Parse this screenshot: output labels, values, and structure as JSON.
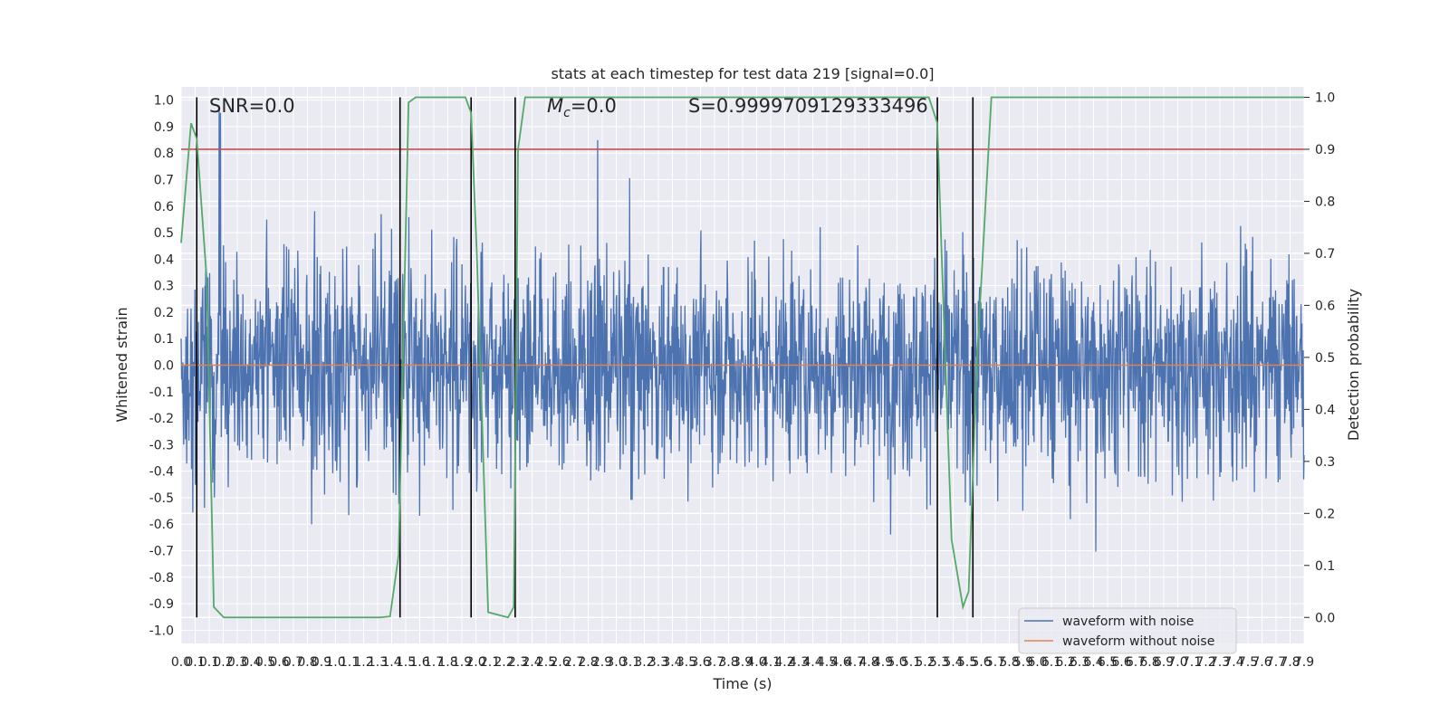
{
  "chart_data": {
    "type": "line",
    "title": "stats at each timestep for test data 219 [signal=0.0]",
    "xlabel": "Time (s)",
    "ylabel": "Whitened strain",
    "y2label": "Detection probability",
    "xlim": [
      0.0,
      7.9
    ],
    "ylim": [
      -1.05,
      1.05
    ],
    "y2lim": [
      -0.05,
      1.02
    ],
    "x_tick_labels": [
      "0.0",
      "0.1",
      "0.1",
      "0.2",
      "0.3",
      "0.4",
      "0.5",
      "0.6",
      "0.7",
      "0.8",
      "0.9",
      "1.0",
      "1.1",
      "1.2",
      "1.3",
      "1.4",
      "1.5",
      "1.6",
      "1.7",
      "1.8",
      "1.9",
      "2.0",
      "2.1",
      "2.2",
      "2.3",
      "2.4",
      "2.5",
      "2.6",
      "2.7",
      "2.8",
      "2.9",
      "3.0",
      "3.1",
      "3.2",
      "3.3",
      "3.4",
      "3.5",
      "3.6",
      "3.7",
      "3.8",
      "3.9",
      "4.0",
      "4.1",
      "4.2",
      "4.3",
      "4.4",
      "4.5",
      "4.6",
      "4.7",
      "4.8",
      "4.9",
      "5.0",
      "5.1",
      "5.2",
      "5.3",
      "5.4",
      "5.5",
      "5.6",
      "5.7",
      "5.8",
      "5.9",
      "6.0",
      "6.1",
      "6.2",
      "6.3",
      "6.4",
      "6.5",
      "6.6",
      "6.7",
      "6.8",
      "6.9",
      "7.0",
      "7.1",
      "7.2",
      "7.3",
      "7.4",
      "7.5",
      "7.6",
      "7.7",
      "7.8",
      "7.9"
    ],
    "y_ticks": [
      -1.0,
      -0.9,
      -0.8,
      -0.7,
      -0.6,
      -0.5,
      -0.4,
      -0.3,
      -0.2,
      -0.1,
      0.0,
      0.1,
      0.2,
      0.3,
      0.4,
      0.5,
      0.6,
      0.7,
      0.8,
      0.9,
      1.0
    ],
    "y2_ticks": [
      0.0,
      0.1,
      0.2,
      0.3,
      0.4,
      0.5,
      0.6,
      0.7,
      0.8,
      0.9,
      1.0
    ],
    "threshold": 0.9,
    "event_times": [
      0.11,
      1.54,
      2.04,
      2.35,
      5.32,
      5.57
    ],
    "series": [
      {
        "name": "waveform with noise",
        "color": "#4c72b0",
        "note": "noise, amplitude roughly +/-0.5 with spikes to +/-1.0"
      },
      {
        "name": "waveform without noise",
        "color": "#dd8452",
        "values_constant": 0.0
      },
      {
        "name": "detection probability",
        "color": "#55a868",
        "axis": "right",
        "x": [
          0.0,
          0.03,
          0.07,
          0.11,
          0.18,
          0.23,
          0.3,
          0.6,
          1.0,
          1.4,
          1.47,
          1.53,
          1.6,
          1.65,
          1.7,
          1.8,
          1.9,
          2.0,
          2.04,
          2.08,
          2.16,
          2.3,
          2.34,
          2.35,
          2.37,
          2.42,
          2.6,
          3.0,
          4.0,
          5.0,
          5.26,
          5.32,
          5.35,
          5.42,
          5.5,
          5.54,
          5.6,
          5.7,
          6.0,
          7.0,
          7.9
        ],
        "values": [
          0.72,
          0.82,
          0.95,
          0.92,
          0.65,
          0.02,
          0.0,
          0.0,
          0.0,
          0.0,
          0.002,
          0.12,
          0.99,
          1.0,
          1.0,
          1.0,
          1.0,
          1.0,
          0.97,
          0.7,
          0.01,
          0.0,
          0.02,
          0.3,
          0.9,
          1.0,
          1.0,
          1.0,
          1.0,
          1.0,
          1.0,
          0.95,
          0.7,
          0.15,
          0.02,
          0.05,
          0.5,
          1.0,
          1.0,
          1.0,
          1.0
        ]
      },
      {
        "name": "threshold",
        "color": "#c44e52",
        "axis": "right",
        "values_constant": 0.9
      }
    ],
    "annotations": {
      "snr": "SNR=0.0",
      "mc_prefix": "M",
      "mc_sub": "c",
      "mc_value": "=0.0",
      "s": "S=0.9999709129333496"
    },
    "legend": {
      "placement": "lower-right",
      "entries": [
        "waveform with noise",
        "waveform without noise"
      ]
    }
  }
}
